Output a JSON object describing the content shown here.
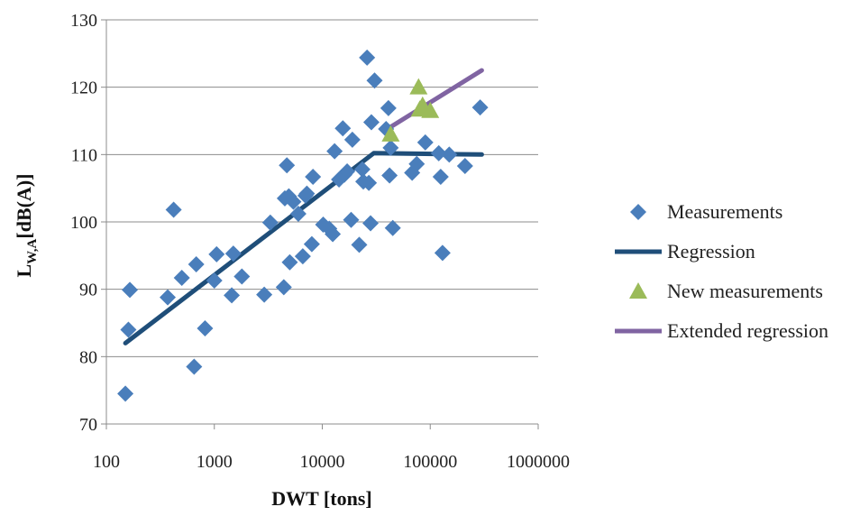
{
  "chart_data": {
    "type": "scatter",
    "xlabel": "DWT [tons]",
    "ylabel_main": "L",
    "ylabel_sub": "W,A",
    "ylabel_unit": "[dB(A)]",
    "x_scale": "log",
    "xlim": [
      100,
      1000000
    ],
    "ylim": [
      70,
      130
    ],
    "x_ticks": [
      100,
      1000,
      10000,
      100000,
      1000000
    ],
    "x_tick_labels": [
      "100",
      "1000",
      "10000",
      "100000",
      "1000000"
    ],
    "y_ticks": [
      70,
      80,
      90,
      100,
      110,
      120,
      130
    ],
    "y_tick_labels": [
      "70",
      "80",
      "90",
      "100",
      "110",
      "120",
      "130"
    ],
    "grid": "horizontal",
    "legend_position": "right",
    "series": [
      {
        "name": "Measurements",
        "kind": "scatter",
        "marker": "diamond",
        "color": "#4a7ebb",
        "points": [
          [
            150,
            74.5
          ],
          [
            160,
            84
          ],
          [
            165,
            89.9
          ],
          [
            370,
            88.8
          ],
          [
            420,
            101.8
          ],
          [
            500,
            91.7
          ],
          [
            650,
            78.5
          ],
          [
            680,
            93.7
          ],
          [
            820,
            84.2
          ],
          [
            1000,
            91.3
          ],
          [
            1050,
            95.2
          ],
          [
            1450,
            89.1
          ],
          [
            1500,
            95.3
          ],
          [
            1800,
            91.9
          ],
          [
            2900,
            89.2
          ],
          [
            3300,
            99.9
          ],
          [
            4400,
            90.3
          ],
          [
            4500,
            103.5
          ],
          [
            4700,
            108.4
          ],
          [
            4900,
            103.8
          ],
          [
            5000,
            94
          ],
          [
            5400,
            103
          ],
          [
            6000,
            101.2
          ],
          [
            6600,
            94.9
          ],
          [
            7000,
            103.9
          ],
          [
            7200,
            104.2
          ],
          [
            8000,
            96.7
          ],
          [
            8200,
            106.7
          ],
          [
            10200,
            99.6
          ],
          [
            11600,
            99
          ],
          [
            12500,
            98.2
          ],
          [
            13000,
            110.5
          ],
          [
            14300,
            106.3
          ],
          [
            15500,
            113.9
          ],
          [
            16000,
            107
          ],
          [
            17000,
            107.5
          ],
          [
            18500,
            100.3
          ],
          [
            19000,
            112.2
          ],
          [
            22000,
            96.6
          ],
          [
            23500,
            107.8
          ],
          [
            24000,
            106
          ],
          [
            26000,
            124.4
          ],
          [
            27000,
            105.8
          ],
          [
            28000,
            99.8
          ],
          [
            28500,
            114.8
          ],
          [
            30500,
            121
          ],
          [
            39000,
            113.8
          ],
          [
            41000,
            116.9
          ],
          [
            42000,
            106.9
          ],
          [
            43000,
            111
          ],
          [
            45000,
            99.1
          ],
          [
            68000,
            107.3
          ],
          [
            75000,
            108.6
          ],
          [
            90000,
            111.8
          ],
          [
            120000,
            110.2
          ],
          [
            125000,
            106.7
          ],
          [
            130000,
            95.4
          ],
          [
            150000,
            110
          ],
          [
            210000,
            108.3
          ],
          [
            290000,
            117
          ]
        ]
      },
      {
        "name": "Regression",
        "kind": "line",
        "color": "#1f4e79",
        "points": [
          [
            150,
            82
          ],
          [
            30000,
            110.2
          ],
          [
            300000,
            110
          ]
        ]
      },
      {
        "name": "New measurements",
        "kind": "scatter",
        "marker": "triangle",
        "color": "#9bbb59",
        "points": [
          [
            43000,
            113
          ],
          [
            78000,
            120
          ],
          [
            80000,
            116.7
          ],
          [
            85000,
            117.3
          ],
          [
            100000,
            116.5
          ]
        ]
      },
      {
        "name": "Extended regression",
        "kind": "line",
        "color": "#8064a2",
        "points": [
          [
            42000,
            114
          ],
          [
            300000,
            122.5
          ]
        ]
      }
    ]
  }
}
